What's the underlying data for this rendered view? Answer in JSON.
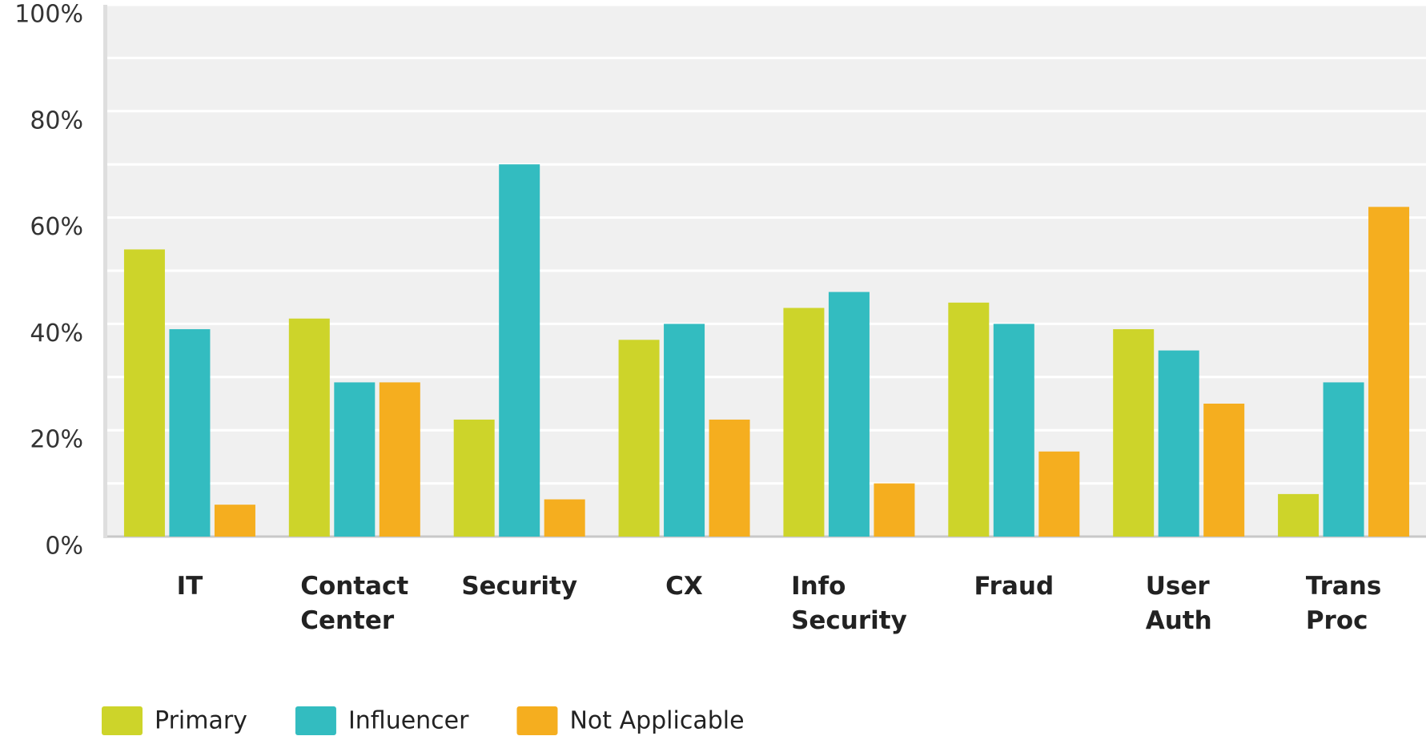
{
  "chart_data": {
    "type": "bar",
    "categories": [
      "IT",
      "Contact Center",
      "Security",
      "CX",
      "Info Security",
      "Fraud",
      "User Auth",
      "Trans Proc"
    ],
    "series": [
      {
        "name": "Primary",
        "color": "#cdd42a",
        "values": [
          54,
          41,
          22,
          37,
          43,
          44,
          39,
          8
        ]
      },
      {
        "name": "Influencer",
        "color": "#33bcc0",
        "values": [
          39,
          29,
          70,
          40,
          46,
          40,
          35,
          29
        ]
      },
      {
        "name": "Not Applicable",
        "color": "#f5ae1f",
        "values": [
          6,
          29,
          7,
          22,
          10,
          16,
          25,
          62
        ]
      }
    ],
    "ylim": [
      0,
      100
    ],
    "yticks": [
      {
        "value": 0,
        "label": "0%"
      },
      {
        "value": 20,
        "label": "20%"
      },
      {
        "value": 40,
        "label": "40%"
      },
      {
        "value": 60,
        "label": "60%"
      },
      {
        "value": 80,
        "label": "80%"
      },
      {
        "value": 100,
        "label": "100%"
      }
    ],
    "minor_yticks": [
      10,
      30,
      50,
      70,
      90
    ],
    "grid": true,
    "legend": "bottom-left"
  }
}
